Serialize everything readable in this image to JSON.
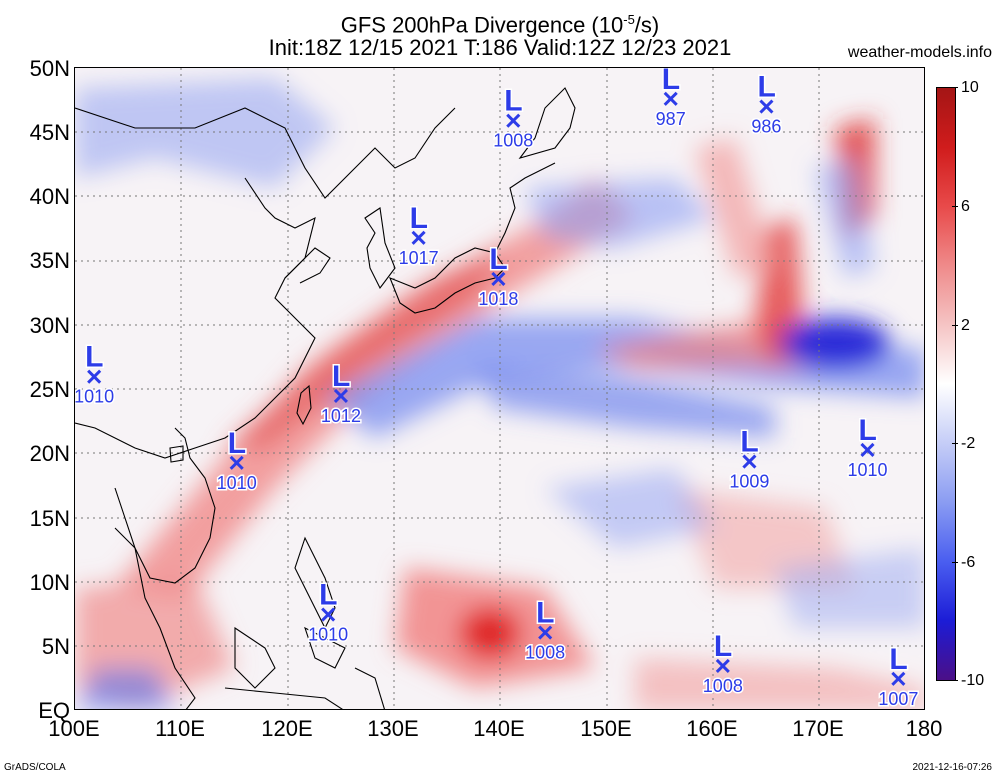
{
  "header": {
    "title_line1_pre": "GFS 200hPa Divergence (10",
    "title_line1_exp": "-5",
    "title_line1_post": "/s)",
    "title_line2": "Init:18Z 12/15 2021 T:186 Valid:12Z 12/23 2021",
    "site": "weather-models.info"
  },
  "footer": {
    "left": "GrADS/COLA",
    "right": "2021-12-16-07:26"
  },
  "axes": {
    "lat_labels": [
      "50N",
      "45N",
      "40N",
      "35N",
      "30N",
      "25N",
      "20N",
      "15N",
      "10N",
      "5N",
      "EQ"
    ],
    "lon_labels": [
      "100E",
      "110E",
      "120E",
      "130E",
      "140E",
      "150E",
      "160E",
      "170E",
      "180"
    ]
  },
  "colorbar": {
    "labels": [
      "10",
      "6",
      "2",
      "-2",
      "-6",
      "-10"
    ],
    "colors": [
      "#4b0f87",
      "#1c1cd6",
      "#4a5ef0",
      "#8a9cf2",
      "#c5cdf7",
      "#ffffff",
      "#f5c4c4",
      "#ef8a8a",
      "#e84a4a",
      "#d01c1c",
      "#a41515"
    ]
  },
  "lows": [
    {
      "label": "L",
      "pressure": "1010",
      "lon": 101.8,
      "lat": 26.0
    },
    {
      "label": "L",
      "pressure": "1010",
      "lon": 115.2,
      "lat": 19.3
    },
    {
      "label": "L",
      "pressure": "1012",
      "lon": 125.0,
      "lat": 24.5
    },
    {
      "label": "L",
      "pressure": "1017",
      "lon": 132.3,
      "lat": 36.8
    },
    {
      "label": "L",
      "pressure": "1008",
      "lon": 141.2,
      "lat": 45.9
    },
    {
      "label": "L",
      "pressure": "1018",
      "lon": 139.8,
      "lat": 33.6
    },
    {
      "label": "L",
      "pressure": "987",
      "lon": 156.0,
      "lat": 47.6
    },
    {
      "label": "L",
      "pressure": "986",
      "lon": 165.0,
      "lat": 47.0
    },
    {
      "label": "L",
      "pressure": "1009",
      "lon": 163.4,
      "lat": 19.4
    },
    {
      "label": "L",
      "pressure": "1010",
      "lon": 174.5,
      "lat": 20.3
    },
    {
      "label": "L",
      "pressure": "1010",
      "lon": 123.8,
      "lat": 7.5
    },
    {
      "label": "L",
      "pressure": "1008",
      "lon": 144.2,
      "lat": 6.1
    },
    {
      "label": "L",
      "pressure": "1008",
      "lon": 160.9,
      "lat": 3.5
    },
    {
      "label": "L",
      "pressure": "1007",
      "lon": 177.4,
      "lat": 2.5
    }
  ]
}
